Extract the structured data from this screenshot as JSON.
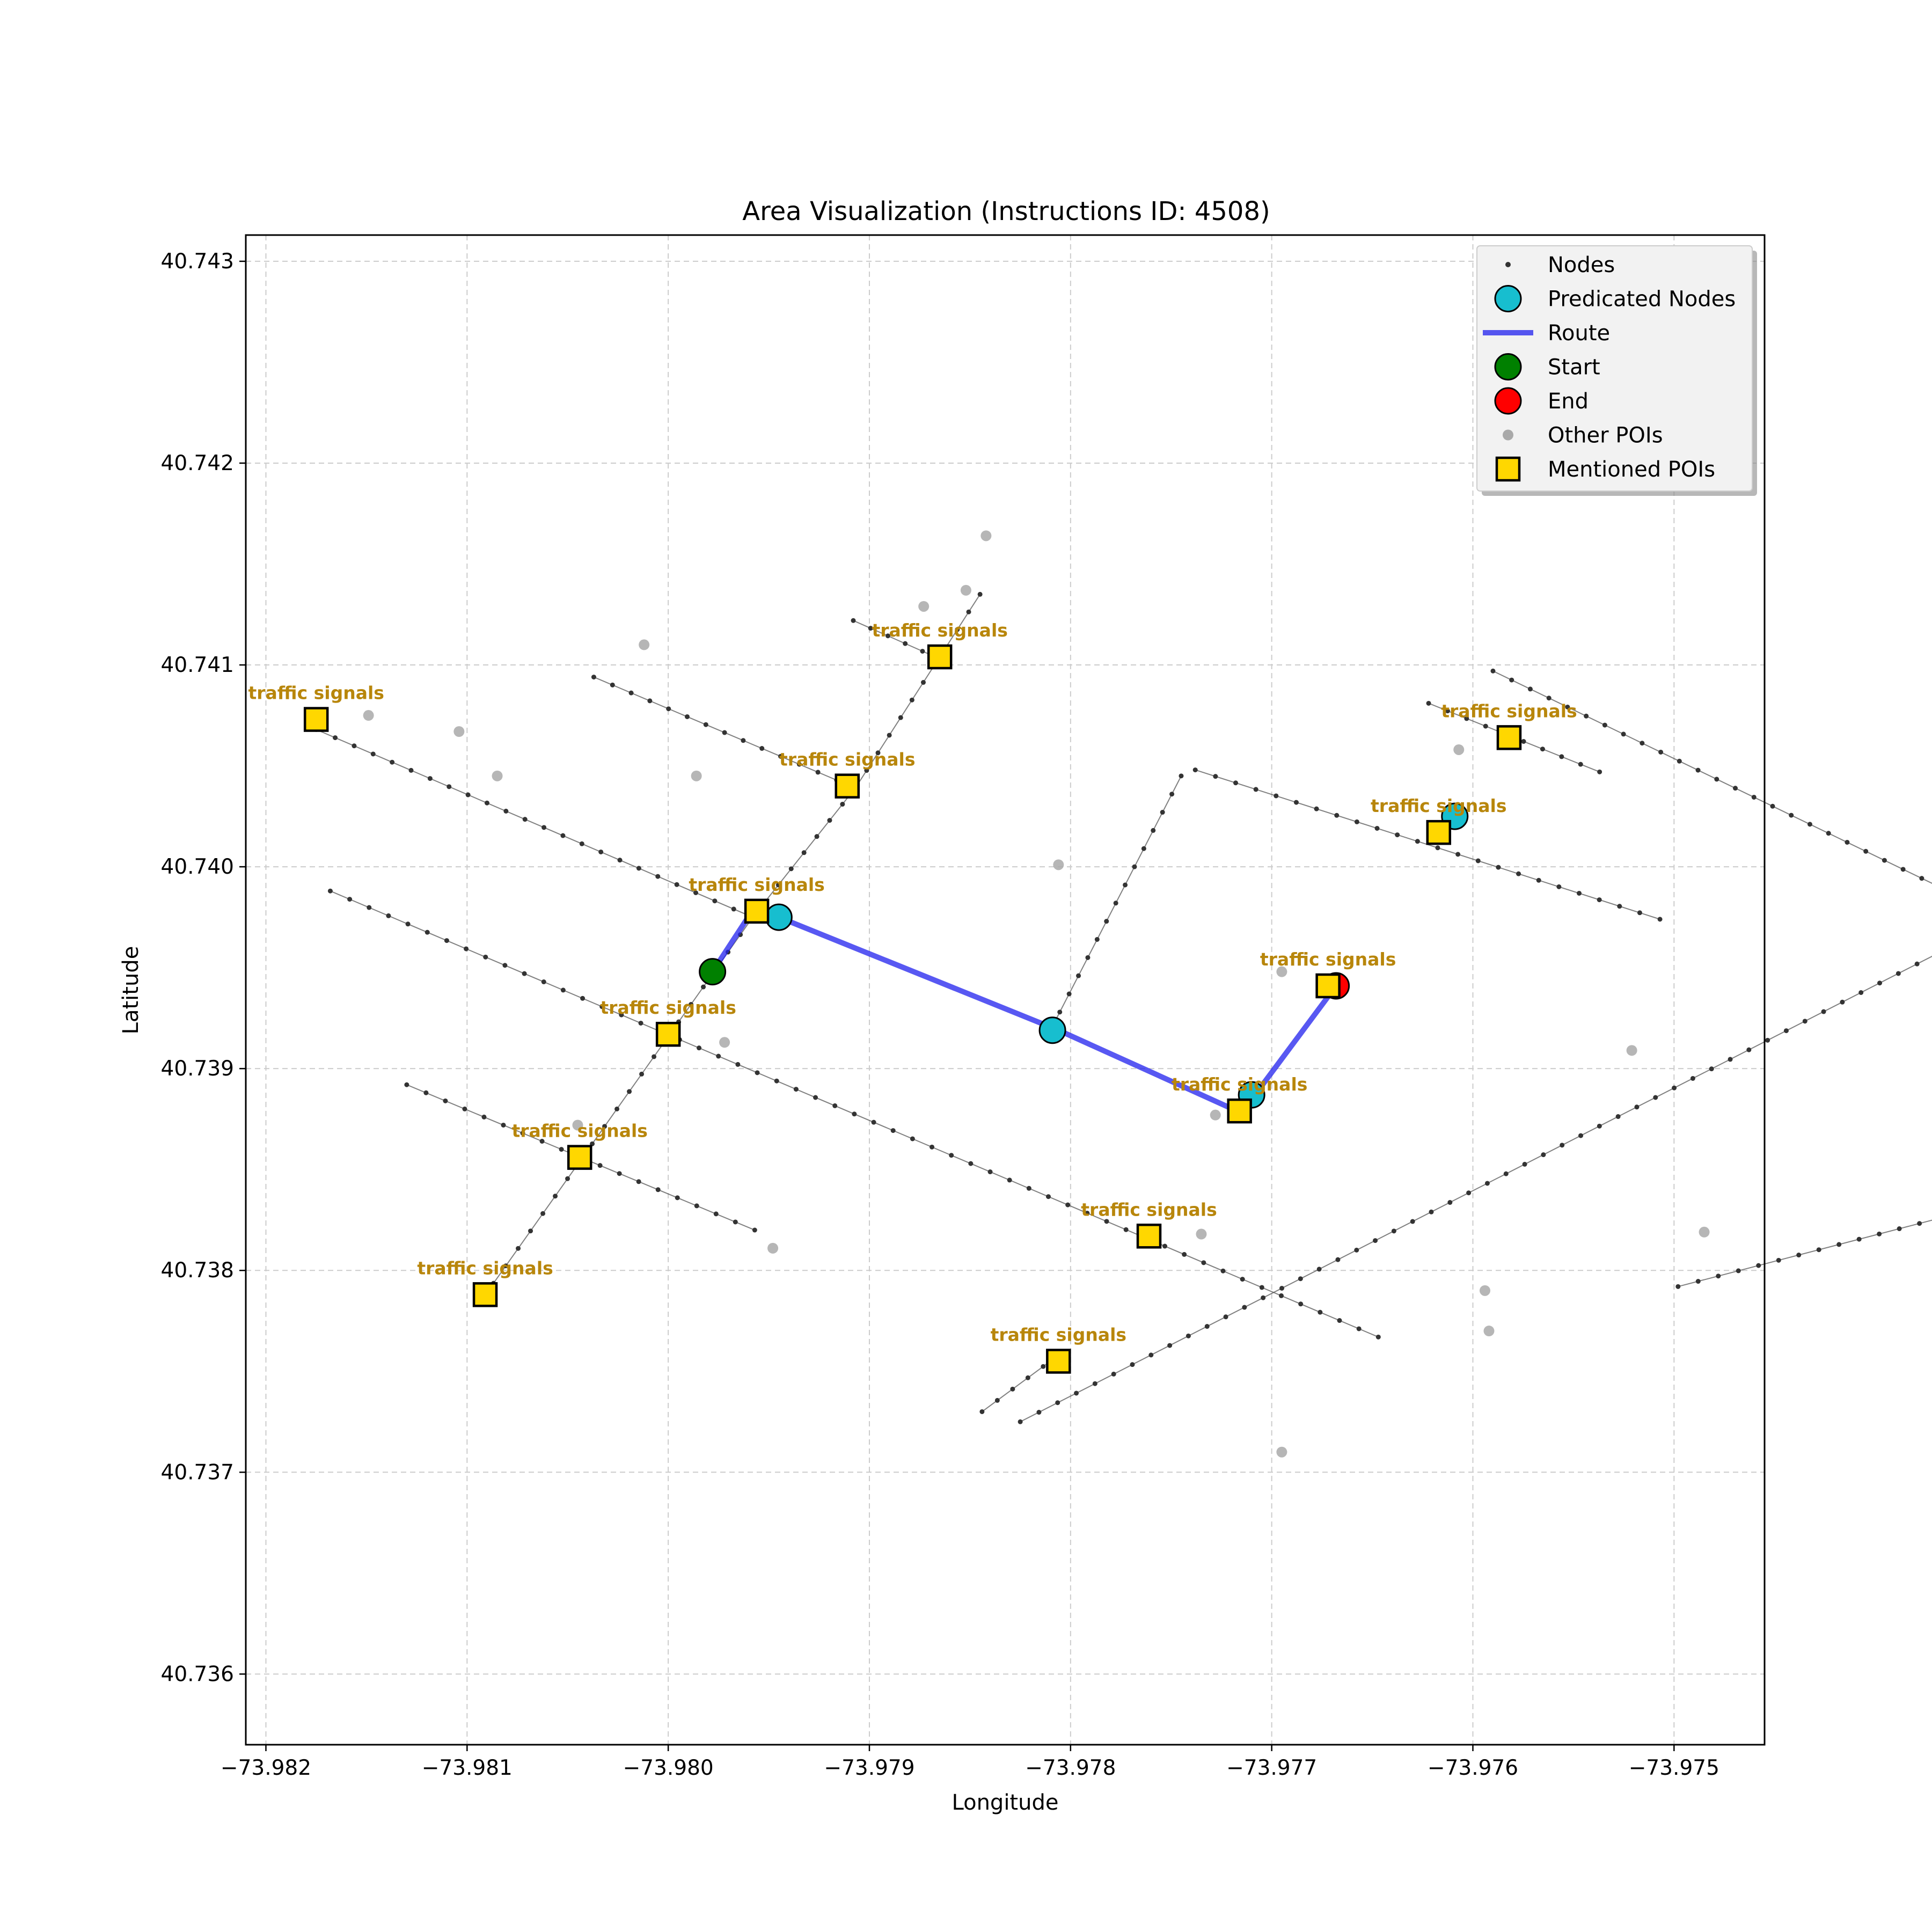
{
  "chart_data": {
    "type": "scatter",
    "title": "Area Visualization (Instructions ID: 4508)",
    "xlabel": "Longitude",
    "ylabel": "Latitude",
    "xlim": [
      -73.9821,
      -73.97455
    ],
    "ylim": [
      40.73565,
      40.74313
    ],
    "grid": true,
    "x_ticks": [
      -73.982,
      -73.981,
      -73.98,
      -73.979,
      -73.978,
      -73.977,
      -73.976,
      -73.975
    ],
    "x_tick_labels": [
      "−73.982",
      "−73.981",
      "−73.980",
      "−73.979",
      "−73.978",
      "−73.977",
      "−73.976",
      "−73.975"
    ],
    "y_ticks": [
      40.736,
      40.737,
      40.738,
      40.739,
      40.74,
      40.741,
      40.742,
      40.743
    ],
    "y_tick_labels": [
      "40.736",
      "40.737",
      "40.738",
      "40.739",
      "40.740",
      "40.741",
      "40.742",
      "40.743"
    ],
    "legend": {
      "placement": "top-right",
      "entries": [
        {
          "key": "nodes",
          "label": "Nodes"
        },
        {
          "key": "predicated",
          "label": "Predicated Nodes"
        },
        {
          "key": "route",
          "label": "Route"
        },
        {
          "key": "start",
          "label": "Start"
        },
        {
          "key": "end",
          "label": "End"
        },
        {
          "key": "other_pois",
          "label": "Other POIs"
        },
        {
          "key": "mentioned",
          "label": "Mentioned POIs"
        }
      ]
    },
    "colors": {
      "node": "#333333",
      "edge": "#555555",
      "predicated": "#17becf",
      "route": "#2020ee",
      "start": "#008000",
      "end": "#ff0000",
      "other_poi": "#a9a9a9",
      "mentioned": "#ffd700",
      "poi_label": "#b8860b"
    },
    "streets": [
      {
        "from": [
          -73.98175,
          40.74068
        ],
        "to": [
          -73.97958,
          40.73975
        ]
      },
      {
        "from": [
          -73.98037,
          40.74094
        ],
        "to": [
          -73.97907,
          40.74039
        ]
      },
      {
        "from": [
          -73.97907,
          40.74039
        ],
        "to": [
          -73.97845,
          40.74135
        ]
      },
      {
        "from": [
          -73.97908,
          40.74122
        ],
        "to": [
          -73.97865,
          40.74103
        ]
      },
      {
        "from": [
          -73.98168,
          40.73988
        ],
        "to": [
          -73.97647,
          40.73767
        ]
      },
      {
        "from": [
          -73.9813,
          40.73892
        ],
        "to": [
          -73.97957,
          40.7382
        ]
      },
      {
        "from": [
          -73.98093,
          40.73785
        ],
        "to": [
          -73.97958,
          40.73975
        ]
      },
      {
        "from": [
          -73.97958,
          40.73975
        ],
        "to": [
          -73.97907,
          40.74039
        ]
      },
      {
        "from": [
          -73.97844,
          40.7373
        ],
        "to": [
          -73.97806,
          40.73758
        ]
      },
      {
        "from": [
          -73.97825,
          40.73725
        ],
        "to": [
          -73.97147,
          40.7407
        ]
      },
      {
        "from": [
          -73.9781,
          40.73919
        ],
        "to": [
          -73.97745,
          40.74045
        ]
      },
      {
        "from": [
          -73.97738,
          40.74048
        ],
        "to": [
          -73.97507,
          40.73974
        ]
      },
      {
        "from": [
          -73.97173,
          40.73896
        ],
        "to": [
          -73.9759,
          40.74097
        ]
      },
      {
        "from": [
          -73.97168,
          40.73878
        ],
        "to": [
          -73.97498,
          40.73792
        ]
      },
      {
        "from": [
          -73.97622,
          40.74081
        ],
        "to": [
          -73.97537,
          40.74047
        ]
      }
    ],
    "route": [
      [
        -73.97978,
        40.73948
      ],
      [
        -73.97957,
        40.7398
      ],
      [
        -73.97945,
        40.73975
      ],
      [
        -73.97806,
        40.73919
      ],
      [
        -73.97715,
        40.73878
      ],
      [
        -73.97668,
        40.73941
      ]
    ],
    "start": [
      -73.97978,
      40.73948
    ],
    "end": [
      -73.97668,
      40.73941
    ],
    "predicated_nodes": [
      [
        -73.97945,
        40.73975
      ],
      [
        -73.97809,
        40.73919
      ],
      [
        -73.9771,
        40.73887
      ],
      [
        -73.97609,
        40.74025
      ]
    ],
    "other_pois": [
      [
        -73.98149,
        40.74075
      ],
      [
        -73.98104,
        40.74067
      ],
      [
        -73.98085,
        40.74045
      ],
      [
        -73.98012,
        40.7411
      ],
      [
        -73.97986,
        40.74045
      ],
      [
        -73.97972,
        40.73913
      ],
      [
        -73.98045,
        40.73872
      ],
      [
        -73.97948,
        40.73811
      ],
      [
        -73.97873,
        40.74129
      ],
      [
        -73.97852,
        40.74137
      ],
      [
        -73.97842,
        40.74164
      ],
      [
        -73.97806,
        40.74001
      ],
      [
        -73.97735,
        40.73818
      ],
      [
        -73.97728,
        40.73877
      ],
      [
        -73.97695,
        40.73948
      ],
      [
        -73.97695,
        40.7371
      ],
      [
        -73.97607,
        40.74058
      ],
      [
        -73.97594,
        40.7379
      ],
      [
        -73.97592,
        40.7377
      ],
      [
        -73.97521,
        40.73909
      ],
      [
        -73.97485,
        40.73819
      ]
    ],
    "mentioned_pois": [
      {
        "coord": [
          -73.98175,
          40.74073
        ],
        "label": "traffic signals"
      },
      {
        "coord": [
          -73.97865,
          40.74104
        ],
        "label": "traffic signals"
      },
      {
        "coord": [
          -73.97911,
          40.7404
        ],
        "label": "traffic signals"
      },
      {
        "coord": [
          -73.97956,
          40.73978
        ],
        "label": "traffic signals"
      },
      {
        "coord": [
          -73.98,
          40.73917
        ],
        "label": "traffic signals"
      },
      {
        "coord": [
          -73.98044,
          40.73856
        ],
        "label": "traffic signals"
      },
      {
        "coord": [
          -73.98091,
          40.73788
        ],
        "label": "traffic signals"
      },
      {
        "coord": [
          -73.97582,
          40.74064
        ],
        "label": "traffic signals"
      },
      {
        "coord": [
          -73.97617,
          40.74017
        ],
        "label": "traffic signals"
      },
      {
        "coord": [
          -73.97672,
          40.73941
        ],
        "label": "traffic signals"
      },
      {
        "coord": [
          -73.97716,
          40.73879
        ],
        "label": "traffic signals"
      },
      {
        "coord": [
          -73.97761,
          40.73817
        ],
        "label": "traffic signals"
      },
      {
        "coord": [
          -73.97806,
          40.73755
        ],
        "label": "traffic signals"
      }
    ]
  }
}
